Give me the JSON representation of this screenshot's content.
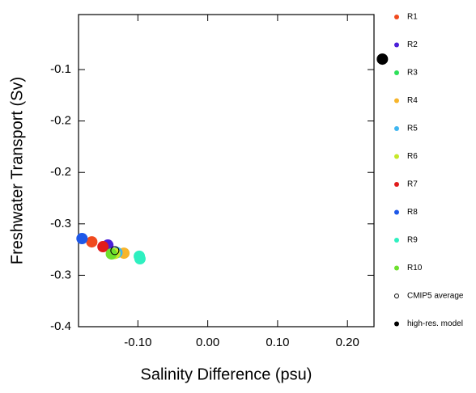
{
  "chart_data": {
    "type": "scatter",
    "x_label": "Salinity Difference (psu)",
    "y_label": "Freshwater Transport (Sv)",
    "xlim": [
      -0.185,
      0.238
    ],
    "ylim": [
      -0.35,
      -0.0465
    ],
    "xticks": [
      {
        "value": -0.1,
        "label": "-0.10"
      },
      {
        "value": 0,
        "label": "0.00"
      },
      {
        "value": 0.1,
        "label": "0.10"
      },
      {
        "value": 0.2,
        "label": "0.20"
      }
    ],
    "yticks": [
      -0.1,
      {
        "value": -0.15,
        "label": "-0.2"
      },
      {
        "value": -0.2,
        "label": "-0.2"
      },
      {
        "value": -0.25,
        "label": "-0.3"
      },
      {
        "value": -0.3,
        "label": "-0.3"
      },
      {
        "value": -0.35,
        "label": "-0.4"
      }
    ],
    "series": [
      {
        "name": "R1",
        "color": "#f04a1e",
        "x": [
          -0.166
        ],
        "y": [
          -0.2675
        ]
      },
      {
        "name": "R2",
        "color": "#4b1fd8",
        "x": [
          -0.143
        ],
        "y": [
          -0.2706
        ]
      },
      {
        "name": "R3",
        "color": "#2ee05a",
        "x": [
          -0.136
        ],
        "y": [
          -0.279
        ]
      },
      {
        "name": "R4",
        "color": "#f7b52b",
        "x": [
          -0.12
        ],
        "y": [
          -0.2785
        ]
      },
      {
        "name": "R5",
        "color": "#3fb6f0",
        "x": [
          -0.13
        ],
        "y": [
          -0.278
        ]
      },
      {
        "name": "R6",
        "color": "#c6e829",
        "x": [
          -0.133
        ],
        "y": [
          -0.2788
        ]
      },
      {
        "name": "R7",
        "color": "#e01b1b",
        "x": [
          -0.15
        ],
        "y": [
          -0.2722
        ]
      },
      {
        "name": "R8",
        "color": "#1e58e8",
        "x": [
          -0.18
        ],
        "y": [
          -0.2643
        ]
      },
      {
        "name": "R9",
        "color": "#2ef0c0",
        "x": [
          -0.098,
          -0.097
        ],
        "y": [
          -0.2815,
          -0.284
        ]
      },
      {
        "name": "R10",
        "color": "#6ee02e",
        "x": [
          -0.138
        ],
        "y": [
          -0.2792
        ]
      },
      {
        "name": "CMIP5 average",
        "color": "#000000",
        "marker": "open",
        "x": [
          -0.133
        ],
        "y": [
          -0.276
        ]
      },
      {
        "name": "high-res. model",
        "color": "#000000",
        "x": [
          0.25
        ],
        "y": [
          -0.0898
        ]
      }
    ]
  }
}
